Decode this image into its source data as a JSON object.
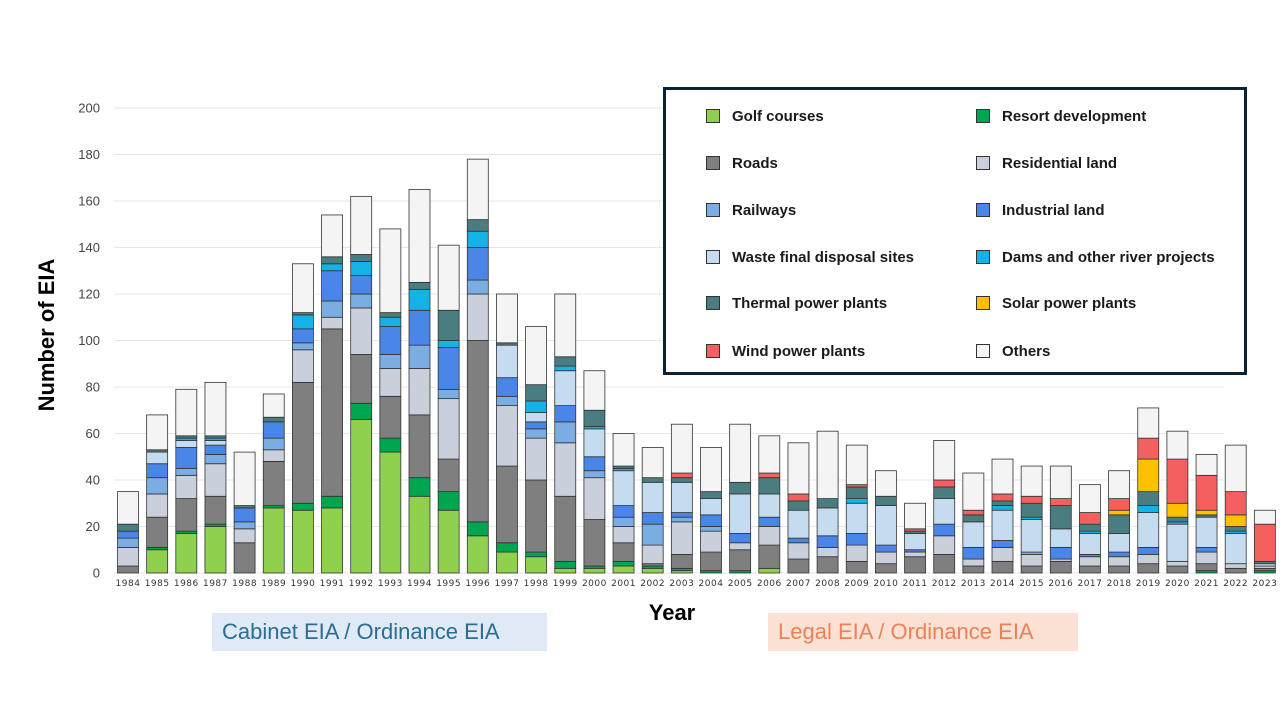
{
  "chart_data": {
    "type": "bar",
    "stacked": true,
    "xlabel": "Year",
    "ylabel": "Number of EIA",
    "ylim": [
      0,
      200
    ],
    "yticks": [
      0,
      20,
      40,
      60,
      80,
      100,
      120,
      140,
      160,
      180,
      200
    ],
    "grid": true,
    "legend_position": "top-right",
    "categories": [
      "1984",
      "1985",
      "1986",
      "1987",
      "1988",
      "1989",
      "1990",
      "1991",
      "1992",
      "1993",
      "1994",
      "1995",
      "1996",
      "1997",
      "1998",
      "1999",
      "2000",
      "2001",
      "2002",
      "2003",
      "2004",
      "2005",
      "2006",
      "2007",
      "2008",
      "2009",
      "2010",
      "2011",
      "2012",
      "2013",
      "2014",
      "2015",
      "2016",
      "2017",
      "2018",
      "2019",
      "2020",
      "2021",
      "2022",
      "2023"
    ],
    "series": [
      {
        "name": "Golf courses",
        "color": "#8fd14f",
        "values": [
          0,
          10,
          17,
          20,
          0,
          28,
          27,
          28,
          66,
          52,
          33,
          27,
          16,
          9,
          7,
          2,
          2,
          3,
          2,
          1,
          0,
          0,
          2,
          0,
          0,
          0,
          0,
          0,
          0,
          0,
          0,
          0,
          0,
          0,
          0,
          0,
          0,
          0,
          0,
          0
        ]
      },
      {
        "name": "Resort development",
        "color": "#00a550",
        "values": [
          0,
          1,
          1,
          1,
          0,
          1,
          3,
          5,
          7,
          6,
          8,
          8,
          6,
          4,
          2,
          3,
          1,
          2,
          1,
          1,
          1,
          1,
          0,
          0,
          0,
          0,
          0,
          0,
          0,
          0,
          0,
          0,
          0,
          0,
          0,
          0,
          0,
          1,
          0,
          1
        ]
      },
      {
        "name": "Roads",
        "color": "#7f7f7f",
        "values": [
          3,
          13,
          14,
          12,
          13,
          19,
          52,
          72,
          21,
          18,
          27,
          14,
          78,
          33,
          31,
          28,
          20,
          8,
          1,
          6,
          8,
          9,
          10,
          6,
          7,
          5,
          4,
          7,
          8,
          3,
          5,
          3,
          5,
          3,
          3,
          4,
          3,
          3,
          2,
          1
        ]
      },
      {
        "name": "Residential land",
        "color": "#c9d0dc",
        "values": [
          8,
          10,
          10,
          14,
          6,
          5,
          14,
          5,
          20,
          12,
          20,
          26,
          20,
          26,
          18,
          23,
          18,
          7,
          8,
          14,
          9,
          3,
          8,
          7,
          4,
          7,
          5,
          2,
          8,
          3,
          6,
          5,
          1,
          4,
          4,
          4,
          2,
          5,
          2,
          1
        ]
      },
      {
        "name": "Railways",
        "color": "#7aaee3",
        "values": [
          4,
          7,
          3,
          4,
          3,
          5,
          3,
          7,
          6,
          6,
          10,
          4,
          6,
          4,
          4,
          9,
          3,
          4,
          9,
          2,
          2,
          0,
          0,
          0,
          0,
          0,
          0,
          0,
          0,
          0,
          0,
          1,
          0,
          0,
          0,
          0,
          0,
          0,
          0,
          0
        ]
      },
      {
        "name": "Industrial land",
        "color": "#4a86e8",
        "values": [
          3,
          6,
          9,
          4,
          6,
          7,
          6,
          13,
          8,
          12,
          15,
          18,
          14,
          8,
          3,
          7,
          6,
          5,
          5,
          2,
          5,
          4,
          4,
          2,
          5,
          5,
          3,
          1,
          5,
          5,
          3,
          0,
          5,
          1,
          2,
          3,
          0,
          2,
          0,
          0
        ]
      },
      {
        "name": "Waste final disposal sites",
        "color": "#c5dbf0",
        "values": [
          0,
          5,
          3,
          2,
          0,
          0,
          0,
          0,
          0,
          0,
          0,
          0,
          0,
          14,
          4,
          15,
          12,
          15,
          13,
          13,
          7,
          17,
          10,
          12,
          12,
          13,
          17,
          7,
          11,
          11,
          13,
          14,
          8,
          9,
          8,
          15,
          16,
          13,
          13,
          1
        ]
      },
      {
        "name": "Dams and other river projects",
        "color": "#14b2e6",
        "values": [
          0,
          0,
          1,
          1,
          0,
          0,
          6,
          3,
          6,
          4,
          9,
          3,
          7,
          0,
          5,
          2,
          1,
          1,
          0,
          0,
          0,
          0,
          0,
          0,
          0,
          2,
          0,
          0,
          0,
          0,
          2,
          1,
          0,
          1,
          0,
          3,
          1,
          0,
          1,
          0
        ]
      },
      {
        "name": "Thermal power plants",
        "color": "#4a7d7f",
        "values": [
          3,
          1,
          1,
          1,
          1,
          2,
          1,
          3,
          3,
          2,
          3,
          13,
          5,
          1,
          7,
          4,
          7,
          1,
          2,
          2,
          3,
          5,
          7,
          4,
          4,
          5,
          4,
          1,
          5,
          3,
          2,
          6,
          10,
          3,
          8,
          6,
          2,
          1,
          2,
          1
        ]
      },
      {
        "name": "Solar power plants",
        "color": "#ffc000",
        "values": [
          0,
          0,
          0,
          0,
          0,
          0,
          0,
          0,
          0,
          0,
          0,
          0,
          0,
          0,
          0,
          0,
          0,
          0,
          0,
          0,
          0,
          0,
          0,
          0,
          0,
          0,
          0,
          0,
          0,
          0,
          0,
          0,
          0,
          0,
          2,
          14,
          6,
          2,
          5,
          0
        ]
      },
      {
        "name": "Wind power plants",
        "color": "#f4605f",
        "values": [
          0,
          0,
          0,
          0,
          0,
          0,
          0,
          0,
          0,
          0,
          0,
          0,
          0,
          0,
          0,
          0,
          0,
          0,
          0,
          2,
          0,
          0,
          2,
          3,
          0,
          1,
          0,
          1,
          3,
          2,
          3,
          3,
          3,
          5,
          5,
          9,
          19,
          15,
          10,
          16
        ]
      },
      {
        "name": "Others",
        "color": "#f4f4f4",
        "values": [
          14,
          15,
          20,
          23,
          23,
          10,
          21,
          18,
          25,
          36,
          40,
          28,
          26,
          21,
          25,
          27,
          17,
          14,
          13,
          21,
          19,
          25,
          16,
          22,
          29,
          17,
          11,
          11,
          17,
          16,
          15,
          13,
          14,
          12,
          12,
          13,
          12,
          9,
          20,
          6
        ]
      }
    ]
  },
  "annotations": {
    "cabinet": "Cabinet EIA / Ordinance EIA",
    "legal": "Legal EIA / Ordinance EIA"
  }
}
